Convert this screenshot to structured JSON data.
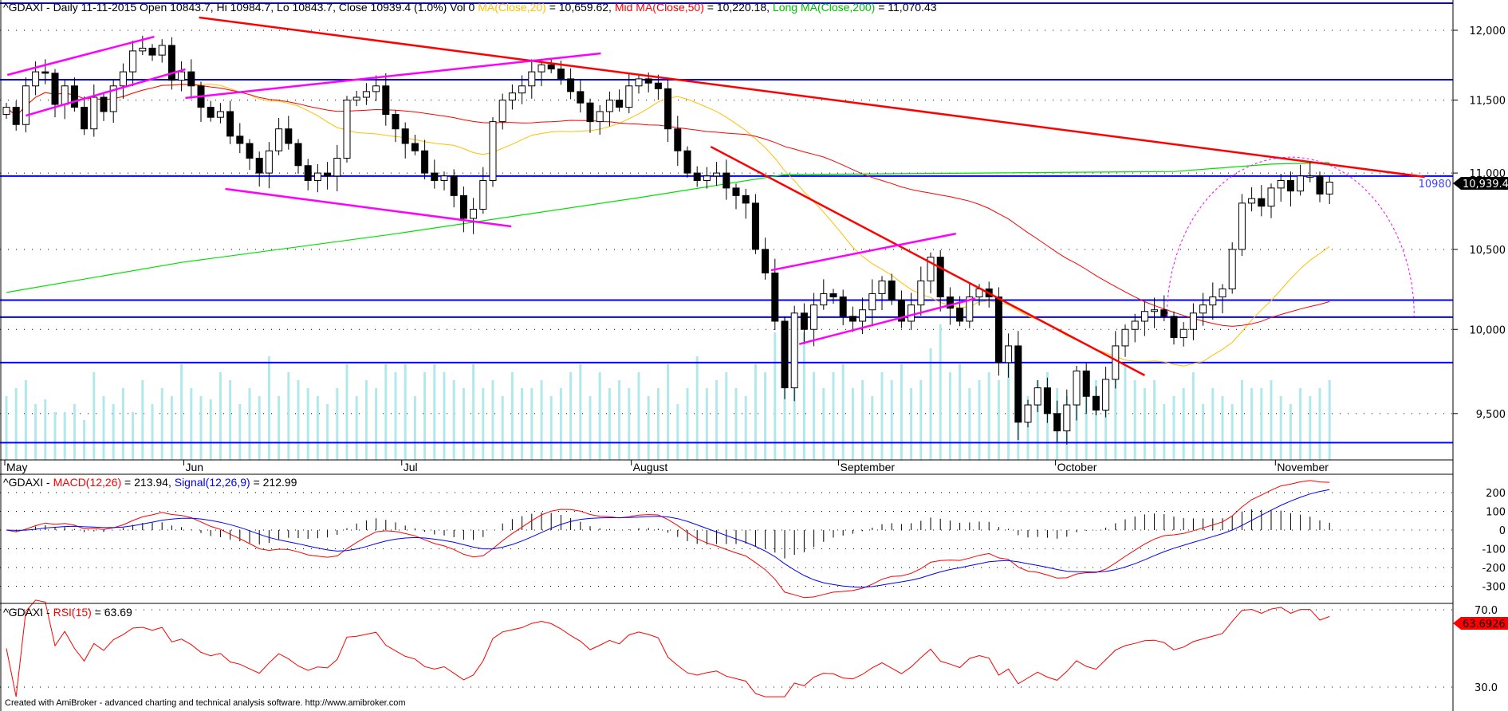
{
  "header": {
    "symbol_info": "^GDAXI - Daily 11-11-2015 Open 10843.7, Hi 10984.7, Lo 10843.7, Close 10939.4 (1.0%) Vol 0 ",
    "ma20_label": "MA(Close,20)",
    "ma20_value": " = 10,659.62, ",
    "ma50_label": "Mid MA(Close,50)",
    "ma50_value": " = 10,220.18, ",
    "ma200_label": "Long MA(Close,200)",
    "ma200_value": " = 11,070.43"
  },
  "macd_header": {
    "prefix": "^GDAXI - ",
    "macd_label": "MACD(12,26)",
    "macd_value": " = 213.94, ",
    "signal_label": "Signal(12,26,9)",
    "signal_value": " = 212.99"
  },
  "rsi_header": {
    "prefix": "^GDAXI - ",
    "rsi_label": "RSI(15)",
    "rsi_value": " = 63.69"
  },
  "last_price_label": "10,939.4",
  "level_label": "10980",
  "rsi_last_label": "63.6926",
  "footer": "Created with AmiBroker - advanced charting and technical analysis software. http://www.amibroker.com",
  "colors": {
    "ma20": "#ffc000",
    "ma50": "#ff0000",
    "ma200": "#00e000",
    "level": "#0000ff",
    "channel": "#ff00ff",
    "trend": "#ff0000",
    "volume": "#b0e8ec",
    "signal": "#0000ff",
    "macd": "#ff0000",
    "rsi": "#ff0000"
  },
  "chart_data": [
    {
      "type": "candlestick",
      "title": "^GDAXI - Daily",
      "scale": "log",
      "ylim": [
        9300,
        12200
      ],
      "y_ticks": [
        "12,000",
        "11,500",
        "11,000",
        "10,500",
        "10,000",
        "9,500"
      ],
      "y_tick_values": [
        12000,
        11500,
        11000,
        10500,
        10000,
        9500
      ],
      "month_labels": [
        {
          "label": "May",
          "index": 0
        },
        {
          "label": "Jun",
          "index": 18.4
        },
        {
          "label": "Jul",
          "index": 40.8
        },
        {
          "label": "August",
          "index": 64.4
        },
        {
          "label": "September",
          "index": 85.7
        },
        {
          "label": "October",
          "index": 108
        },
        {
          "label": "November",
          "index": 130.6
        }
      ],
      "first_open": 11400,
      "closes": [
        11450,
        11330,
        11600,
        11700,
        11690,
        11470,
        11600,
        11450,
        11300,
        11520,
        11420,
        11600,
        11700,
        11850,
        11870,
        11820,
        11890,
        11640,
        11700,
        11600,
        11450,
        11380,
        11420,
        11250,
        11200,
        11100,
        11000,
        11150,
        11300,
        11200,
        11050,
        10950,
        11000,
        10980,
        11100,
        11500,
        11520,
        11560,
        11600,
        11400,
        11300,
        11200,
        11150,
        11000,
        10950,
        10980,
        10850,
        10700,
        10760,
        10950,
        11350,
        11500,
        11550,
        11600,
        11700,
        11750,
        11720,
        11650,
        11560,
        11480,
        11350,
        11420,
        11500,
        11450,
        11600,
        11650,
        11620,
        11580,
        11300,
        11150,
        11000,
        10950,
        10980,
        11000,
        10900,
        10850,
        10800,
        10500,
        10350,
        10050,
        9650,
        10100,
        10000,
        10150,
        10220,
        10200,
        10080,
        10050,
        10120,
        10220,
        10300,
        10180,
        10050,
        10150,
        10300,
        10450,
        10200,
        10130,
        10050,
        10200,
        10250,
        10200,
        9800,
        9900,
        9450,
        9550,
        9650,
        9500,
        9400,
        9550,
        9750,
        9600,
        9520,
        9700,
        9900,
        10000,
        10050,
        10110,
        10120,
        10080,
        9950,
        10000,
        10100,
        10150,
        10200,
        10250,
        10500,
        10800,
        10830,
        10780,
        10900,
        10950,
        10880,
        10980,
        10980,
        10860,
        10939.4
      ],
      "volume_pct": [
        40,
        45,
        50,
        35,
        38,
        30,
        30,
        35,
        25,
        55,
        40,
        35,
        45,
        30,
        50,
        35,
        45,
        40,
        60,
        45,
        40,
        38,
        55,
        50,
        35,
        45,
        40,
        65,
        40,
        55,
        50,
        45,
        40,
        35,
        45,
        60,
        40,
        50,
        45,
        60,
        55,
        60,
        40,
        55,
        60,
        55,
        50,
        45,
        60,
        45,
        50,
        40,
        55,
        45,
        45,
        50,
        40,
        45,
        55,
        60,
        40,
        55,
        45,
        50,
        45,
        55,
        40,
        45,
        60,
        35,
        45,
        65,
        45,
        50,
        55,
        45,
        40,
        60,
        55,
        80,
        90,
        70,
        80,
        55,
        45,
        55,
        60,
        45,
        50,
        40,
        55,
        50,
        60,
        45,
        50,
        70,
        85,
        55,
        60,
        45,
        50,
        55,
        50,
        60,
        45,
        40,
        50,
        55,
        45,
        40,
        35,
        40,
        50,
        45,
        55,
        60,
        50,
        45,
        50,
        35,
        40,
        45,
        55,
        35,
        45,
        40,
        35,
        50,
        45,
        45,
        50,
        40,
        35,
        45,
        40,
        45,
        50
      ]
    },
    {
      "type": "line",
      "title": "Long MA(Close,200)",
      "points": [
        [
          0,
          10228
        ],
        [
          18,
          10417
        ],
        [
          40,
          10600
        ],
        [
          65,
          10836
        ],
        [
          80,
          10990
        ],
        [
          100,
          11000
        ],
        [
          120,
          11010
        ],
        [
          130,
          11060
        ],
        [
          136,
          11070
        ]
      ]
    },
    {
      "type": "annotations",
      "horizontal_levels": [
        12200,
        11644,
        10980,
        10180,
        10075,
        9800,
        9333
      ],
      "trendlines_red": [
        [
          [
            19.8,
            12094
          ],
          [
            145.8,
            10974
          ]
        ],
        [
          [
            72.4,
            11178
          ],
          [
            117.0,
            9724
          ]
        ]
      ],
      "channel_lines": [
        [
          [
            0.1,
            11678
          ],
          [
            15.2,
            11953
          ]
        ],
        [
          [
            2.0,
            11392
          ],
          [
            18.4,
            11718
          ]
        ],
        [
          [
            18.4,
            11515
          ],
          [
            61.1,
            11832
          ]
        ],
        [
          [
            22.5,
            10894
          ],
          [
            51.9,
            10648
          ]
        ],
        [
          [
            78.6,
            10367
          ],
          [
            97.6,
            10601
          ]
        ],
        [
          [
            81.5,
            9911
          ],
          [
            99.6,
            10190
          ]
        ]
      ],
      "arc": {
        "center_index": 132,
        "half_width_bars": 12.7,
        "base_price": 10080,
        "top_price": 11107
      }
    },
    {
      "type": "line",
      "title": "MACD(12,26) / Signal(12,26,9)",
      "y_ticks": [
        "200",
        "100",
        "0",
        "-100",
        "-200",
        "-300"
      ],
      "y_tick_values": [
        200,
        100,
        0,
        -100,
        -200,
        -300
      ]
    },
    {
      "type": "line",
      "title": "RSI(15)",
      "y_ticks": [
        "70.0",
        "30.0"
      ],
      "y_tick_values": [
        70,
        30
      ]
    }
  ]
}
